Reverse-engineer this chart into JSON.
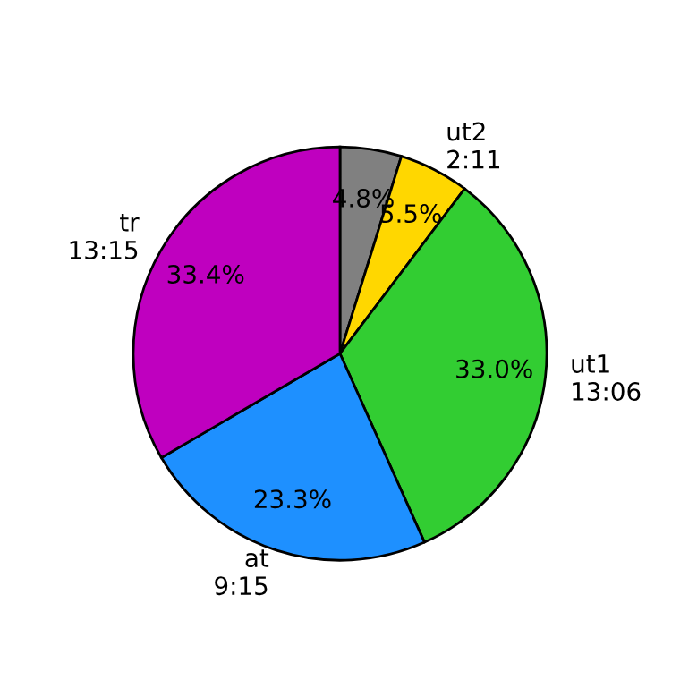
{
  "chart_data": {
    "type": "pie",
    "categories": [
      null,
      "ut2\n2:11",
      "ut1\n13:06",
      "at\n9:15",
      "tr\n13:15"
    ],
    "values": [
      4.8,
      5.5,
      33.0,
      23.3,
      33.4
    ],
    "value_labels": [
      "4.8%",
      "5.5%",
      "33.0%",
      "23.3%",
      "33.4%"
    ],
    "colors": [
      "#808080",
      "#ffd700",
      "#32cd32",
      "#1e90ff",
      "#bf00bf"
    ]
  }
}
